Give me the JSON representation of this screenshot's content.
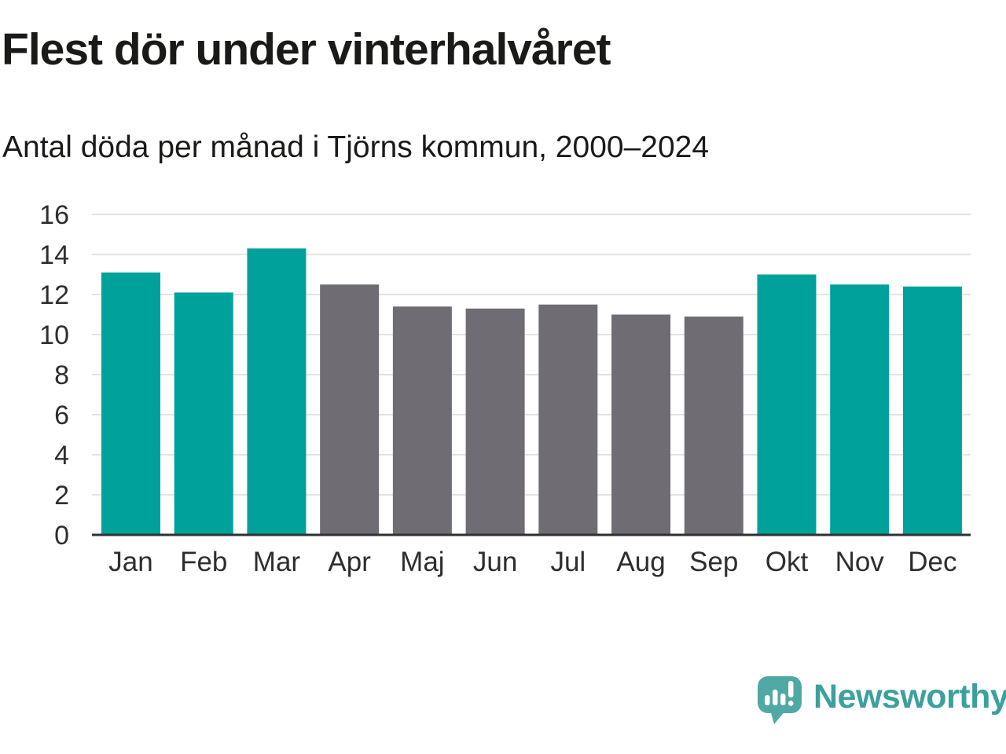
{
  "chart_data": {
    "type": "bar",
    "title": "Flest dör under vinterhalvåret",
    "subtitle": "Antal döda per månad i Tjörns kommun, 2000–2024",
    "categories": [
      "Jan",
      "Feb",
      "Mar",
      "Apr",
      "Maj",
      "Jun",
      "Jul",
      "Aug",
      "Sep",
      "Okt",
      "Nov",
      "Dec"
    ],
    "values": [
      13.1,
      12.1,
      14.3,
      12.5,
      11.4,
      11.3,
      11.5,
      11.0,
      10.9,
      13.0,
      12.5,
      12.4
    ],
    "bar_groups": [
      "winter",
      "winter",
      "winter",
      "summer",
      "summer",
      "summer",
      "summer",
      "summer",
      "summer",
      "winter",
      "winter",
      "winter"
    ],
    "colors": {
      "winter": "#00a19b",
      "summer": "#6f6c73"
    },
    "xlabel": "",
    "ylabel": "",
    "ylim": [
      0,
      16
    ],
    "yticks": [
      0,
      2,
      4,
      6,
      8,
      10,
      12,
      14,
      16
    ],
    "grid": true,
    "legend": "none"
  },
  "branding": {
    "logo_text": "Newsworthy",
    "logo_icon": "speech-bubble-bar-chart",
    "logo_bubble_color": "#4fa8a4",
    "logo_text_color": "#3ca09d"
  }
}
